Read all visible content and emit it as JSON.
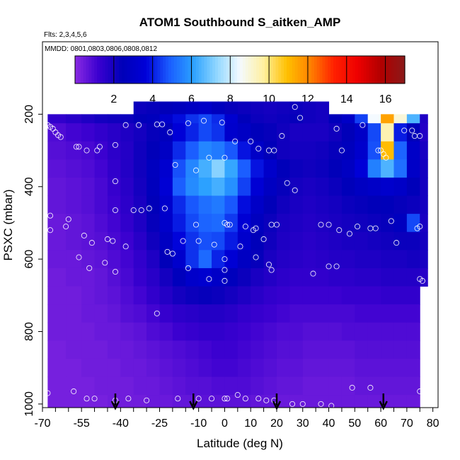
{
  "chart_data": {
    "type": "heatmap",
    "title": "ATOM1 Southbound S_aitken_AMP",
    "flights_label": "Flts: 2,3,4,5,6",
    "dates_label": "MMDD: 0801,0803,0806,0808,0812",
    "xlabel": "Latitude (deg N)",
    "ylabel": "PSXC (mbar)",
    "xlim": [
      -70,
      82
    ],
    "ylim": [
      1010,
      0
    ],
    "x_ticks": [
      -70,
      -55,
      -40,
      -25,
      -10,
      0,
      10,
      20,
      30,
      40,
      50,
      60,
      70,
      80
    ],
    "x_tick_labels": [
      "-70",
      "-55",
      "-40",
      "-25",
      "-10",
      "0",
      "10",
      "20",
      "30",
      "40",
      "50",
      "60",
      "70",
      "80"
    ],
    "y_ticks": [
      200,
      400,
      600,
      800,
      1000
    ],
    "y_tick_labels": [
      "200",
      "400",
      "600",
      "800",
      "1000"
    ],
    "colorbar": {
      "range": [
        0,
        17
      ],
      "ticks": [
        2,
        4,
        6,
        8,
        10,
        12,
        14,
        16
      ],
      "tick_labels": [
        "2",
        "4",
        "6",
        "8",
        "10",
        "12",
        "14",
        "16"
      ],
      "colors": [
        "#8a2be2",
        "#3a00d0",
        "#0000b8",
        "#0000d8",
        "#1a5cff",
        "#2aa0ff",
        "#8fd6ff",
        "#f4faff",
        "#fff0a0",
        "#ffc000",
        "#ff8000",
        "#ff2000",
        "#ee0000",
        "#b00000",
        "#8b1a1a"
      ]
    },
    "x_bins": [
      -68,
      -61,
      -55,
      -50,
      -45,
      -40,
      -35,
      -30,
      -25,
      -20,
      -15,
      -10,
      -5,
      0,
      5,
      10,
      15,
      20,
      25,
      30,
      35,
      40,
      45,
      50,
      55,
      60,
      65,
      70,
      75,
      78
    ],
    "y_bins": [
      165,
      200,
      225,
      275,
      325,
      375,
      425,
      475,
      525,
      575,
      625,
      675,
      725,
      775,
      825,
      875,
      925,
      975,
      1010
    ],
    "values": [
      [
        null,
        null,
        null,
        null,
        null,
        null,
        2.2,
        2.3,
        2.4,
        2.6,
        2.8,
        3.0,
        2.6,
        2.3,
        2.2,
        2.1,
        2.0,
        2.1,
        2.2,
        2.1,
        2.0,
        null,
        null,
        null,
        null,
        null,
        null,
        null,
        null
      ],
      [
        1.4,
        1.6,
        1.8,
        2.0,
        2.1,
        2.2,
        2.4,
        2.6,
        3.2,
        3.8,
        4.3,
        4.6,
        4.2,
        3.3,
        2.5,
        2.2,
        2.1,
        2.2,
        2.3,
        2.1,
        2.0,
        2.5,
        3.0,
        4.5,
        8.5,
        11.5,
        9.0,
        6.5,
        1.8
      ],
      [
        0.9,
        1.1,
        1.2,
        1.4,
        1.6,
        1.8,
        2.0,
        2.3,
        2.6,
        3.6,
        4.1,
        4.6,
        4.3,
        3.2,
        2.9,
        2.5,
        2.3,
        2.1,
        1.9,
        1.9,
        1.9,
        2.1,
        2.4,
        3.0,
        4.6,
        9.5,
        4.0,
        2.5,
        1.7
      ],
      [
        0.8,
        0.9,
        1.0,
        1.2,
        1.5,
        1.7,
        2.1,
        2.4,
        2.9,
        4.2,
        4.9,
        5.6,
        5.4,
        4.8,
        3.9,
        3.0,
        2.4,
        2.1,
        2.0,
        2.0,
        2.1,
        2.3,
        2.6,
        3.2,
        4.7,
        11.0,
        5.0,
        3.0,
        1.9
      ],
      [
        0.7,
        0.8,
        0.9,
        1.1,
        1.4,
        1.7,
        2.1,
        2.7,
        3.3,
        4.7,
        5.6,
        6.4,
        7.2,
        6.2,
        4.9,
        3.9,
        3.1,
        2.5,
        2.2,
        2.1,
        2.2,
        2.4,
        2.8,
        3.6,
        5.5,
        6.5,
        5.2,
        3.0,
        2.0
      ],
      [
        0.6,
        0.7,
        0.8,
        1.0,
        1.3,
        1.6,
        2.0,
        2.6,
        3.5,
        4.9,
        5.7,
        6.1,
        6.4,
        5.8,
        4.5,
        3.5,
        2.8,
        2.3,
        2.0,
        1.9,
        2.0,
        2.2,
        2.5,
        2.8,
        3.0,
        3.2,
        3.0,
        2.5,
        2.0
      ],
      [
        0.6,
        0.7,
        0.8,
        1.0,
        1.2,
        1.5,
        1.9,
        2.4,
        3.2,
        4.2,
        4.8,
        5.2,
        5.4,
        4.8,
        3.8,
        3.0,
        2.4,
        2.1,
        1.9,
        1.8,
        1.9,
        2.0,
        2.2,
        2.3,
        2.4,
        2.5,
        2.3,
        2.2,
        2.0
      ],
      [
        0.5,
        0.6,
        0.7,
        0.9,
        1.1,
        1.4,
        1.8,
        2.3,
        3.1,
        4.0,
        4.6,
        5.0,
        5.1,
        4.4,
        3.5,
        2.7,
        2.2,
        1.9,
        1.8,
        1.7,
        1.8,
        1.9,
        2.0,
        2.1,
        2.2,
        2.3,
        2.7,
        4.6,
        1.9
      ],
      [
        0.5,
        0.6,
        0.7,
        0.8,
        1.0,
        1.2,
        1.6,
        2.1,
        2.8,
        3.7,
        4.3,
        4.7,
        4.6,
        4.0,
        3.2,
        2.5,
        2.1,
        1.8,
        1.7,
        1.6,
        1.7,
        1.8,
        1.9,
        1.9,
        2.0,
        2.1,
        2.2,
        2.2,
        2.0
      ],
      [
        0.5,
        0.5,
        0.6,
        0.7,
        0.9,
        1.1,
        1.4,
        1.8,
        2.4,
        3.2,
        4.3,
        5.1,
        4.1,
        3.5,
        2.8,
        2.3,
        1.9,
        1.7,
        1.6,
        1.5,
        1.6,
        1.7,
        1.7,
        1.8,
        1.8,
        1.9,
        1.9,
        2.0,
        1.9
      ],
      [
        0.4,
        0.5,
        0.5,
        0.6,
        0.8,
        1.0,
        1.3,
        1.6,
        2.0,
        2.6,
        3.1,
        3.3,
        3.0,
        2.6,
        2.2,
        1.9,
        1.7,
        1.5,
        1.4,
        1.4,
        1.4,
        1.5,
        1.5,
        1.6,
        1.6,
        1.7,
        1.7,
        1.7,
        1.6
      ],
      [
        0.4,
        0.4,
        0.5,
        0.6,
        0.7,
        0.9,
        1.1,
        1.4,
        1.7,
        2.0,
        2.2,
        2.3,
        2.2,
        2.0,
        1.8,
        1.6,
        1.4,
        1.3,
        1.2,
        1.2,
        1.2,
        1.2,
        1.3,
        1.3,
        1.3,
        1.4,
        1.4,
        1.4,
        null
      ],
      [
        0.4,
        0.4,
        0.5,
        0.5,
        0.6,
        0.8,
        0.9,
        1.1,
        1.3,
        1.5,
        1.6,
        1.7,
        1.7,
        1.6,
        1.4,
        1.3,
        1.2,
        1.1,
        1.0,
        1.0,
        1.0,
        1.0,
        1.0,
        1.1,
        1.1,
        1.1,
        1.1,
        1.1,
        null
      ],
      [
        0.4,
        0.4,
        0.4,
        0.5,
        0.5,
        0.6,
        0.7,
        0.9,
        1.0,
        1.2,
        1.3,
        1.4,
        1.4,
        1.3,
        1.2,
        1.1,
        1.0,
        0.9,
        0.9,
        0.8,
        0.8,
        0.8,
        0.9,
        0.9,
        0.9,
        0.9,
        0.9,
        0.9,
        null
      ],
      [
        0.3,
        0.4,
        0.4,
        0.4,
        0.5,
        0.5,
        0.6,
        0.7,
        0.8,
        0.9,
        1.0,
        1.1,
        1.2,
        1.2,
        1.1,
        1.0,
        0.9,
        0.8,
        0.8,
        0.7,
        0.7,
        0.7,
        0.7,
        0.8,
        0.8,
        0.8,
        0.8,
        0.8,
        null
      ],
      [
        0.3,
        0.3,
        0.4,
        0.4,
        0.4,
        0.5,
        0.5,
        0.6,
        0.7,
        0.8,
        0.9,
        1.0,
        1.1,
        1.1,
        1.0,
        0.9,
        0.8,
        0.7,
        0.7,
        0.6,
        0.6,
        0.6,
        0.6,
        0.7,
        0.7,
        0.7,
        0.7,
        0.7,
        null
      ],
      [
        0.3,
        0.3,
        0.3,
        0.4,
        0.4,
        0.4,
        0.5,
        0.5,
        0.6,
        0.7,
        0.8,
        0.8,
        0.9,
        0.9,
        0.9,
        0.8,
        0.7,
        0.6,
        0.6,
        0.5,
        0.5,
        0.5,
        0.5,
        0.6,
        0.6,
        0.6,
        0.6,
        0.6,
        null
      ],
      [
        0.3,
        0.3,
        0.3,
        0.3,
        0.4,
        0.4,
        0.4,
        0.5,
        0.5,
        0.6,
        0.6,
        0.7,
        0.7,
        0.7,
        0.7,
        0.6,
        0.6,
        0.5,
        0.5,
        0.5,
        0.5,
        0.5,
        0.5,
        0.5,
        0.5,
        0.5,
        0.5,
        0.5,
        null
      ]
    ],
    "points": [
      [
        -68,
        230
      ],
      [
        -67,
        235
      ],
      [
        -66,
        240
      ],
      [
        -65,
        250
      ],
      [
        -64,
        258
      ],
      [
        -63,
        263
      ],
      [
        -57,
        290
      ],
      [
        -56,
        290
      ],
      [
        -53,
        300
      ],
      [
        -48,
        290
      ],
      [
        -49,
        300
      ],
      [
        -42,
        285
      ],
      [
        -38,
        230
      ],
      [
        -33,
        230
      ],
      [
        -26,
        228
      ],
      [
        -24,
        228
      ],
      [
        -21,
        250
      ],
      [
        -14,
        225
      ],
      [
        -8,
        218
      ],
      [
        -1,
        223
      ],
      [
        -19,
        340
      ],
      [
        -11,
        355
      ],
      [
        -6,
        320
      ],
      [
        0,
        320
      ],
      [
        4,
        275
      ],
      [
        10,
        275
      ],
      [
        13,
        295
      ],
      [
        17,
        300
      ],
      [
        19,
        300
      ],
      [
        22,
        260
      ],
      [
        27,
        180
      ],
      [
        29,
        210
      ],
      [
        43,
        240
      ],
      [
        45,
        300
      ],
      [
        53,
        230
      ],
      [
        59,
        300
      ],
      [
        60,
        300
      ],
      [
        61,
        310
      ],
      [
        62,
        320
      ],
      [
        69,
        245
      ],
      [
        72,
        245
      ],
      [
        73,
        260
      ],
      [
        75,
        260
      ],
      [
        -42,
        385
      ],
      [
        -35,
        465
      ],
      [
        -32,
        465
      ],
      [
        -29,
        460
      ],
      [
        -23,
        460
      ],
      [
        -42,
        465
      ],
      [
        -67,
        480
      ],
      [
        -60,
        490
      ],
      [
        -61,
        510
      ],
      [
        -67,
        520
      ],
      [
        -54,
        535
      ],
      [
        -51,
        555
      ],
      [
        -45,
        545
      ],
      [
        -43,
        550
      ],
      [
        -38,
        565
      ],
      [
        -22,
        580
      ],
      [
        -20,
        585
      ],
      [
        -16,
        550
      ],
      [
        -11,
        505
      ],
      [
        -10,
        550
      ],
      [
        0,
        500
      ],
      [
        1,
        505
      ],
      [
        2,
        505
      ],
      [
        8,
        510
      ],
      [
        11,
        520
      ],
      [
        12,
        515
      ],
      [
        15,
        545
      ],
      [
        18,
        505
      ],
      [
        20,
        505
      ],
      [
        24,
        390
      ],
      [
        27,
        410
      ],
      [
        37,
        505
      ],
      [
        40,
        505
      ],
      [
        44,
        520
      ],
      [
        48,
        530
      ],
      [
        51,
        510
      ],
      [
        56,
        515
      ],
      [
        58,
        515
      ],
      [
        64,
        495
      ],
      [
        66,
        555
      ],
      [
        74,
        515
      ],
      [
        75,
        510
      ],
      [
        -56,
        595
      ],
      [
        -52,
        625
      ],
      [
        -46,
        610
      ],
      [
        -42,
        635
      ],
      [
        -14,
        625
      ],
      [
        -6,
        655
      ],
      [
        -4,
        560
      ],
      [
        0,
        600
      ],
      [
        0,
        630
      ],
      [
        0,
        660
      ],
      [
        6,
        565
      ],
      [
        12,
        595
      ],
      [
        17,
        615
      ],
      [
        18,
        630
      ],
      [
        34,
        640
      ],
      [
        40,
        620
      ],
      [
        43,
        620
      ],
      [
        -26,
        750
      ],
      [
        75,
        655
      ],
      [
        76,
        660
      ],
      [
        -68,
        970
      ],
      [
        -58,
        965
      ],
      [
        -53,
        985
      ],
      [
        -50,
        985
      ],
      [
        -42,
        990
      ],
      [
        -37,
        985
      ],
      [
        -30,
        990
      ],
      [
        -18,
        985
      ],
      [
        -10,
        985
      ],
      [
        -5,
        985
      ],
      [
        0,
        985
      ],
      [
        1,
        985
      ],
      [
        5,
        975
      ],
      [
        8,
        985
      ],
      [
        13,
        985
      ],
      [
        16,
        990
      ],
      [
        19,
        990
      ],
      [
        26,
        1000
      ],
      [
        30,
        1000
      ],
      [
        37,
        1000
      ],
      [
        41,
        1005
      ],
      [
        49,
        955
      ],
      [
        56,
        955
      ],
      [
        75,
        965
      ]
    ],
    "arrows": [
      -42,
      -12,
      20,
      61
    ]
  }
}
